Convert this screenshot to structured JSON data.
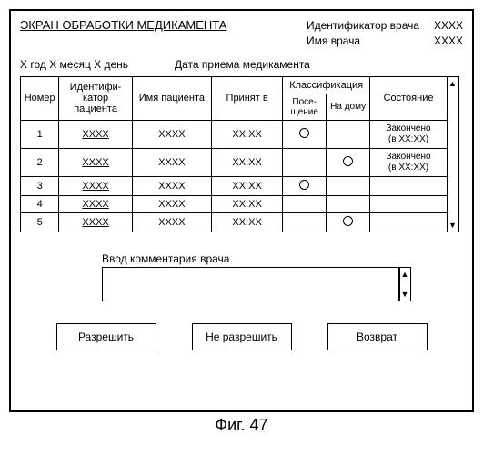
{
  "screen_title": "ЭКРАН ОБРАБОТКИ МЕДИКАМЕНТА",
  "doctor": {
    "id_label": "Идентификатор врача",
    "id_value": "XXXX",
    "name_label": "Имя врача",
    "name_value": "XXXX"
  },
  "date": {
    "current": "X год X месяц X день",
    "intake_label": "Дата приема медикамента"
  },
  "table": {
    "headers": {
      "number": "Номер",
      "patient_id": "Идентифи-\nкатор пациента",
      "patient_name": "Имя пациента",
      "taken_at": "Принят в",
      "classification": "Классификация",
      "visit": "Посе-\nщение",
      "home": "На дому",
      "status": "Состояние"
    },
    "rows": [
      {
        "n": "1",
        "pid": "XXXX",
        "pname": "XXXX",
        "time": "XX:XX",
        "visit": true,
        "home": false,
        "status": "Закончено\n(в XX:XX)"
      },
      {
        "n": "2",
        "pid": "XXXX",
        "pname": "XXXX",
        "time": "XX:XX",
        "visit": false,
        "home": true,
        "status": "Закончено\n(в XX:XX)"
      },
      {
        "n": "3",
        "pid": "XXXX",
        "pname": "XXXX",
        "time": "XX:XX",
        "visit": true,
        "home": false,
        "status": ""
      },
      {
        "n": "4",
        "pid": "XXXX",
        "pname": "XXXX",
        "time": "XX:XX",
        "visit": false,
        "home": false,
        "status": ""
      },
      {
        "n": "5",
        "pid": "XXXX",
        "pname": "XXXX",
        "time": "XX:XX",
        "visit": false,
        "home": true,
        "status": ""
      }
    ]
  },
  "comment": {
    "label": "Ввод комментария врача",
    "value": ""
  },
  "buttons": {
    "allow": "Разрешить",
    "deny": "Не разрешить",
    "back": "Возврат"
  },
  "figure_caption": "Фиг. 47",
  "colors": {
    "border": "#000000",
    "background": "#ffffff",
    "text": "#000000"
  }
}
